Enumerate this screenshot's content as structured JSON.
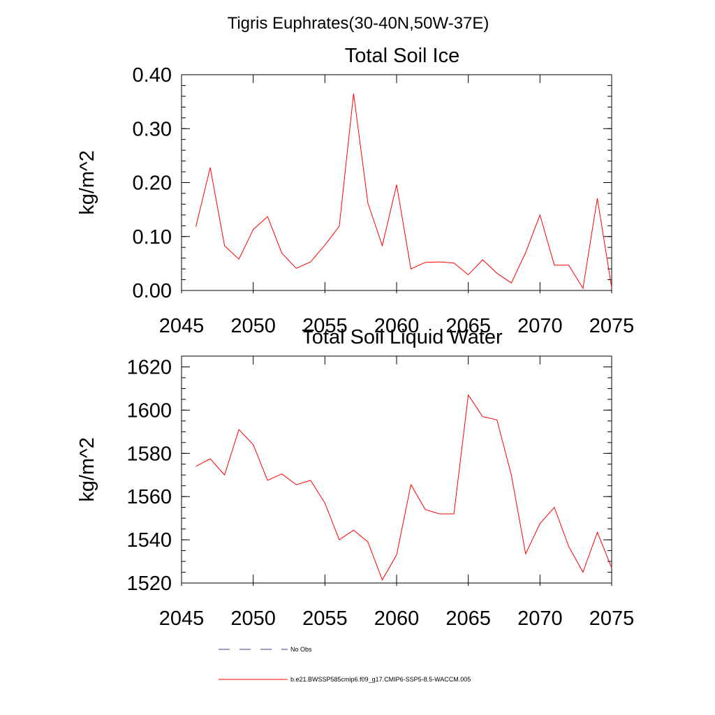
{
  "figure": {
    "title": "Tigris Euphrates(30-40N,50W-37E)"
  },
  "legend": {
    "entries": [
      {
        "label": "No Obs",
        "color": "#3b3b8c",
        "style": "dashed"
      },
      {
        "label": "b.e21.BWSSP585cmip6.f09_g17.CMIP6-SSP5-8.5-WACCM.005",
        "color": "#ff0000",
        "style": "solid"
      }
    ]
  },
  "chart_data": [
    {
      "type": "line",
      "title": "Total Soil Ice",
      "xlabel": "",
      "ylabel": "kg/m^2",
      "xlim": [
        2045,
        2075
      ],
      "ylim": [
        0,
        0.4
      ],
      "xticks": [
        2045,
        2050,
        2055,
        2060,
        2065,
        2070,
        2075
      ],
      "xtick_labels": [
        "2045",
        "2050",
        "2055",
        "2060",
        "2065",
        "2070",
        "2075"
      ],
      "yticks": [
        0,
        0.1,
        0.2,
        0.3,
        0.4
      ],
      "ytick_labels": [
        "0.00",
        "0.10",
        "0.20",
        "0.30",
        "0.40"
      ],
      "y_minor_step": 0.02,
      "x": [
        2046,
        2047,
        2048,
        2049,
        2050,
        2051,
        2052,
        2053,
        2054,
        2055,
        2056,
        2057,
        2058,
        2059,
        2060,
        2061,
        2062,
        2063,
        2064,
        2065,
        2066,
        2067,
        2068,
        2069,
        2070,
        2071,
        2072,
        2073,
        2074,
        2075
      ],
      "series": [
        {
          "name": "b.e21.BWSSP585cmip6.f09_g17.CMIP6-SSP5-8.5-WACCM.005",
          "color": "#ff0000",
          "values": [
            0.118,
            0.228,
            0.083,
            0.058,
            0.113,
            0.137,
            0.069,
            0.041,
            0.053,
            0.084,
            0.119,
            0.365,
            0.162,
            0.083,
            0.196,
            0.04,
            0.052,
            0.053,
            0.051,
            0.029,
            0.057,
            0.032,
            0.014,
            0.07,
            0.14,
            0.047,
            0.047,
            0.004,
            0.171,
            0.005
          ]
        }
      ]
    },
    {
      "type": "line",
      "title": "Total Soil Liquid Water",
      "xlabel": "",
      "ylabel": "kg/m^2",
      "xlim": [
        2045,
        2075
      ],
      "ylim": [
        1520,
        1625
      ],
      "xticks": [
        2045,
        2050,
        2055,
        2060,
        2065,
        2070,
        2075
      ],
      "xtick_labels": [
        "2045",
        "2050",
        "2055",
        "2060",
        "2065",
        "2070",
        "2075"
      ],
      "yticks": [
        1520,
        1540,
        1560,
        1580,
        1600,
        1620
      ],
      "ytick_labels": [
        "1520",
        "1540",
        "1560",
        "1580",
        "1600",
        "1620"
      ],
      "y_minor_step": 5,
      "x": [
        2046,
        2047,
        2048,
        2049,
        2050,
        2051,
        2052,
        2053,
        2054,
        2055,
        2056,
        2057,
        2058,
        2059,
        2060,
        2061,
        2062,
        2063,
        2064,
        2065,
        2066,
        2067,
        2068,
        2069,
        2070,
        2071,
        2072,
        2073,
        2074,
        2075
      ],
      "series": [
        {
          "name": "b.e21.BWSSP585cmip6.f09_g17.CMIP6-SSP5-8.5-WACCM.005",
          "color": "#ff0000",
          "values": [
            1574,
            1577.5,
            1570,
            1591,
            1584,
            1567.5,
            1570.5,
            1565.5,
            1567.5,
            1557,
            1540,
            1544.5,
            1539,
            1521.5,
            1533,
            1565.5,
            1554,
            1552,
            1552,
            1607,
            1597,
            1595.5,
            1570,
            1533.5,
            1547.5,
            1555,
            1537,
            1525,
            1543.5,
            1527
          ]
        }
      ]
    }
  ]
}
